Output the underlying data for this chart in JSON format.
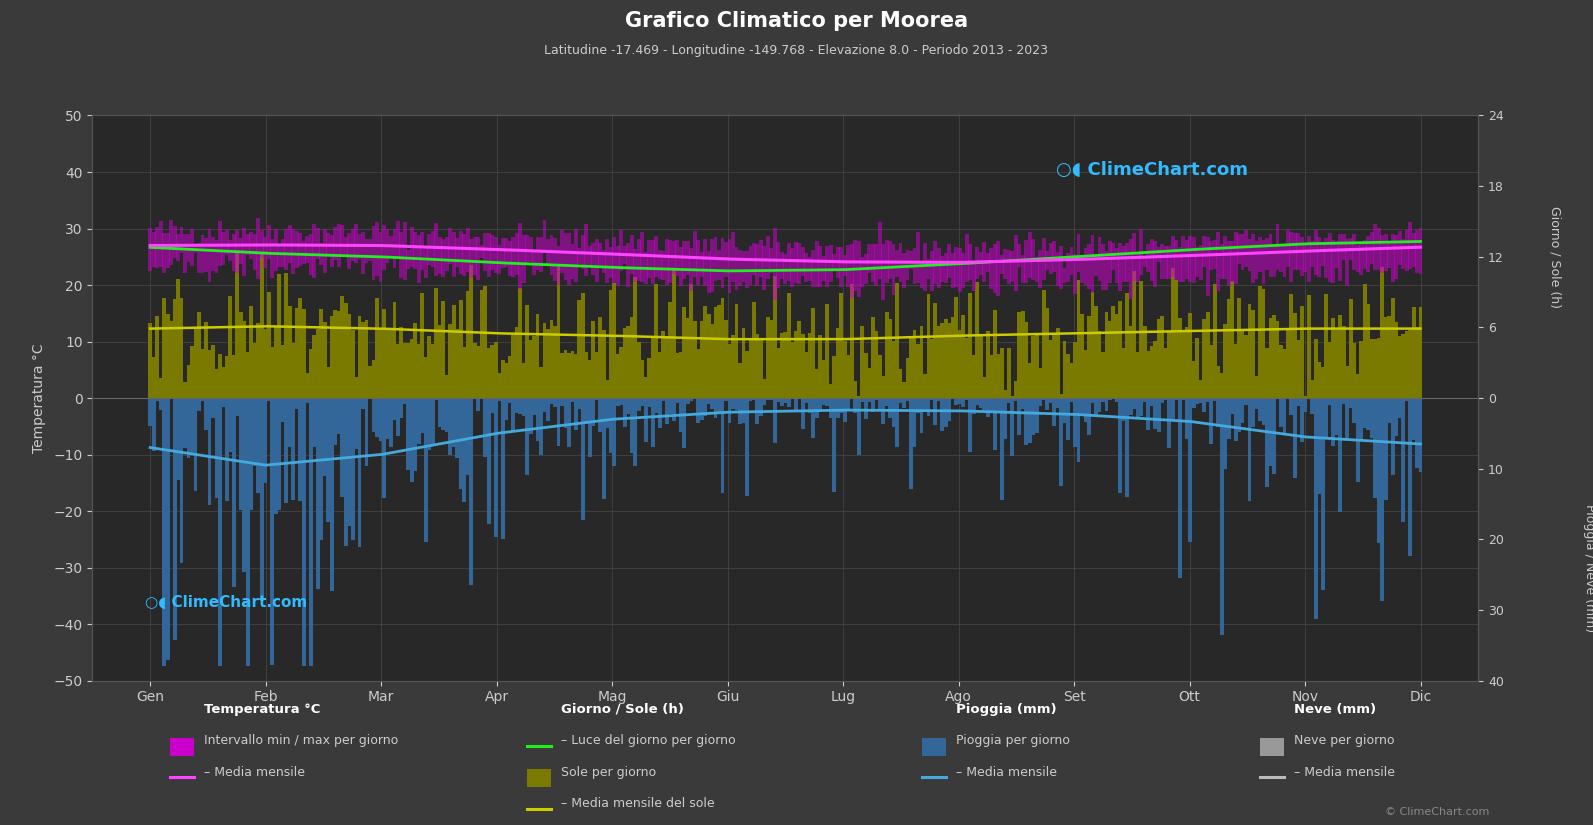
{
  "title": "Grafico Climatico per Moorea",
  "subtitle": "Latitudine -17.469 - Longitudine -149.768 - Elevazione 8.0 - Periodo 2013 - 2023",
  "background_color": "#3a3a3a",
  "plot_bg_color": "#282828",
  "months": [
    "Gen",
    "Feb",
    "Mar",
    "Apr",
    "Mag",
    "Giu",
    "Lug",
    "Ago",
    "Set",
    "Ott",
    "Nov",
    "Dic"
  ],
  "temp_mean": [
    27.0,
    27.1,
    27.0,
    26.3,
    25.5,
    24.6,
    24.1,
    24.0,
    24.5,
    25.2,
    26.0,
    26.7
  ],
  "temp_daily_max": [
    29.5,
    29.7,
    29.5,
    28.8,
    28.0,
    27.1,
    26.6,
    26.5,
    27.0,
    27.7,
    28.5,
    29.3
  ],
  "temp_daily_min": [
    23.0,
    23.2,
    23.0,
    22.3,
    21.5,
    20.6,
    20.1,
    20.0,
    20.5,
    21.2,
    22.0,
    22.8
  ],
  "daylight_hours": [
    12.8,
    12.3,
    12.0,
    11.5,
    11.1,
    10.8,
    10.9,
    11.4,
    12.0,
    12.6,
    13.1,
    13.3
  ],
  "sunshine_hours": [
    5.9,
    6.1,
    5.9,
    5.5,
    5.3,
    5.0,
    5.0,
    5.3,
    5.5,
    5.7,
    5.9,
    5.9
  ],
  "rain_daily_mm": [
    7.0,
    9.5,
    8.0,
    5.0,
    3.0,
    2.0,
    1.7,
    1.8,
    2.3,
    3.3,
    5.5,
    6.5
  ],
  "colors": {
    "bg": "#3a3a3a",
    "plot_bg": "#282828",
    "temp_range_fill": "#cc00cc",
    "temp_mean_line": "#ff44ff",
    "daylight_line": "#22ee22",
    "sunshine_fill": "#7a7a00",
    "sunshine_line": "#cccc00",
    "rain_fill": "#336699",
    "rain_line": "#44aadd",
    "snow_fill": "#999999",
    "snow_line": "#bbbbbb",
    "title_color": "#ffffff",
    "subtitle_color": "#cccccc",
    "axis_color": "#cccccc",
    "grid_color": "#4a4a4a",
    "logo_color": "#33bbff"
  },
  "sun_axis_ticks": [
    0,
    6,
    12,
    18,
    24
  ],
  "rain_axis_ticks": [
    0,
    10,
    20,
    30,
    40
  ],
  "left_ylim": [
    -50,
    50
  ],
  "logo_text": "ClimeChart.com",
  "copyright_text": "© ClimeChart.com"
}
